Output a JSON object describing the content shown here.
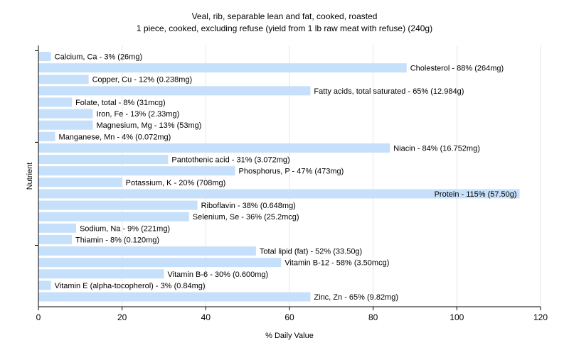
{
  "chart_data": {
    "type": "bar",
    "orientation": "horizontal",
    "title": "Veal, rib, separable lean and fat, cooked, roasted",
    "subtitle": "1 piece, cooked, excluding refuse (yield from 1 lb raw meat with refuse) (240g)",
    "xlabel": "% Daily Value",
    "ylabel": "Nutrient",
    "xlim": [
      0,
      120
    ],
    "xticks": [
      "0",
      "20",
      "40",
      "60",
      "80",
      "100",
      "120"
    ],
    "grid": true,
    "bar_color": "#c6e0fb",
    "grid_color": "#e6e6e6",
    "categories": [
      "Calcium, Ca",
      "Cholesterol",
      "Copper, Cu",
      "Fatty acids, total saturated",
      "Folate, total",
      "Iron, Fe",
      "Magnesium, Mg",
      "Manganese, Mn",
      "Niacin",
      "Pantothenic acid",
      "Phosphorus, P",
      "Potassium, K",
      "Protein",
      "Riboflavin",
      "Selenium, Se",
      "Sodium, Na",
      "Thiamin",
      "Total lipid (fat)",
      "Vitamin B-12",
      "Vitamin B-6",
      "Vitamin E (alpha-tocopherol)",
      "Zinc, Zn"
    ],
    "values": [
      3,
      88,
      12,
      65,
      8,
      13,
      13,
      4,
      84,
      31,
      47,
      20,
      115,
      38,
      36,
      9,
      8,
      52,
      58,
      30,
      3,
      65
    ],
    "labels": [
      "Calcium, Ca - 3% (26mg)",
      "Cholesterol - 88% (264mg)",
      "Copper, Cu - 12% (0.238mg)",
      "Fatty acids, total saturated - 65% (12.984g)",
      "Folate, total - 8% (31mcg)",
      "Iron, Fe - 13% (2.33mg)",
      "Magnesium, Mg - 13% (53mg)",
      "Manganese, Mn - 4% (0.072mg)",
      "Niacin - 84% (16.752mg)",
      "Pantothenic acid - 31% (3.072mg)",
      "Phosphorus, P - 47% (473mg)",
      "Potassium, K - 20% (708mg)",
      "Protein - 115% (57.50g)",
      "Riboflavin - 38% (0.648mg)",
      "Selenium, Se - 36% (25.2mcg)",
      "Sodium, Na - 9% (221mg)",
      "Thiamin - 8% (0.120mg)",
      "Total lipid (fat) - 52% (33.50g)",
      "Vitamin B-12 - 58% (3.50mcg)",
      "Vitamin B-6 - 30% (0.600mg)",
      "Vitamin E (alpha-tocopherol) - 3% (0.84mg)",
      "Zinc, Zn - 65% (9.82mg)"
    ]
  }
}
